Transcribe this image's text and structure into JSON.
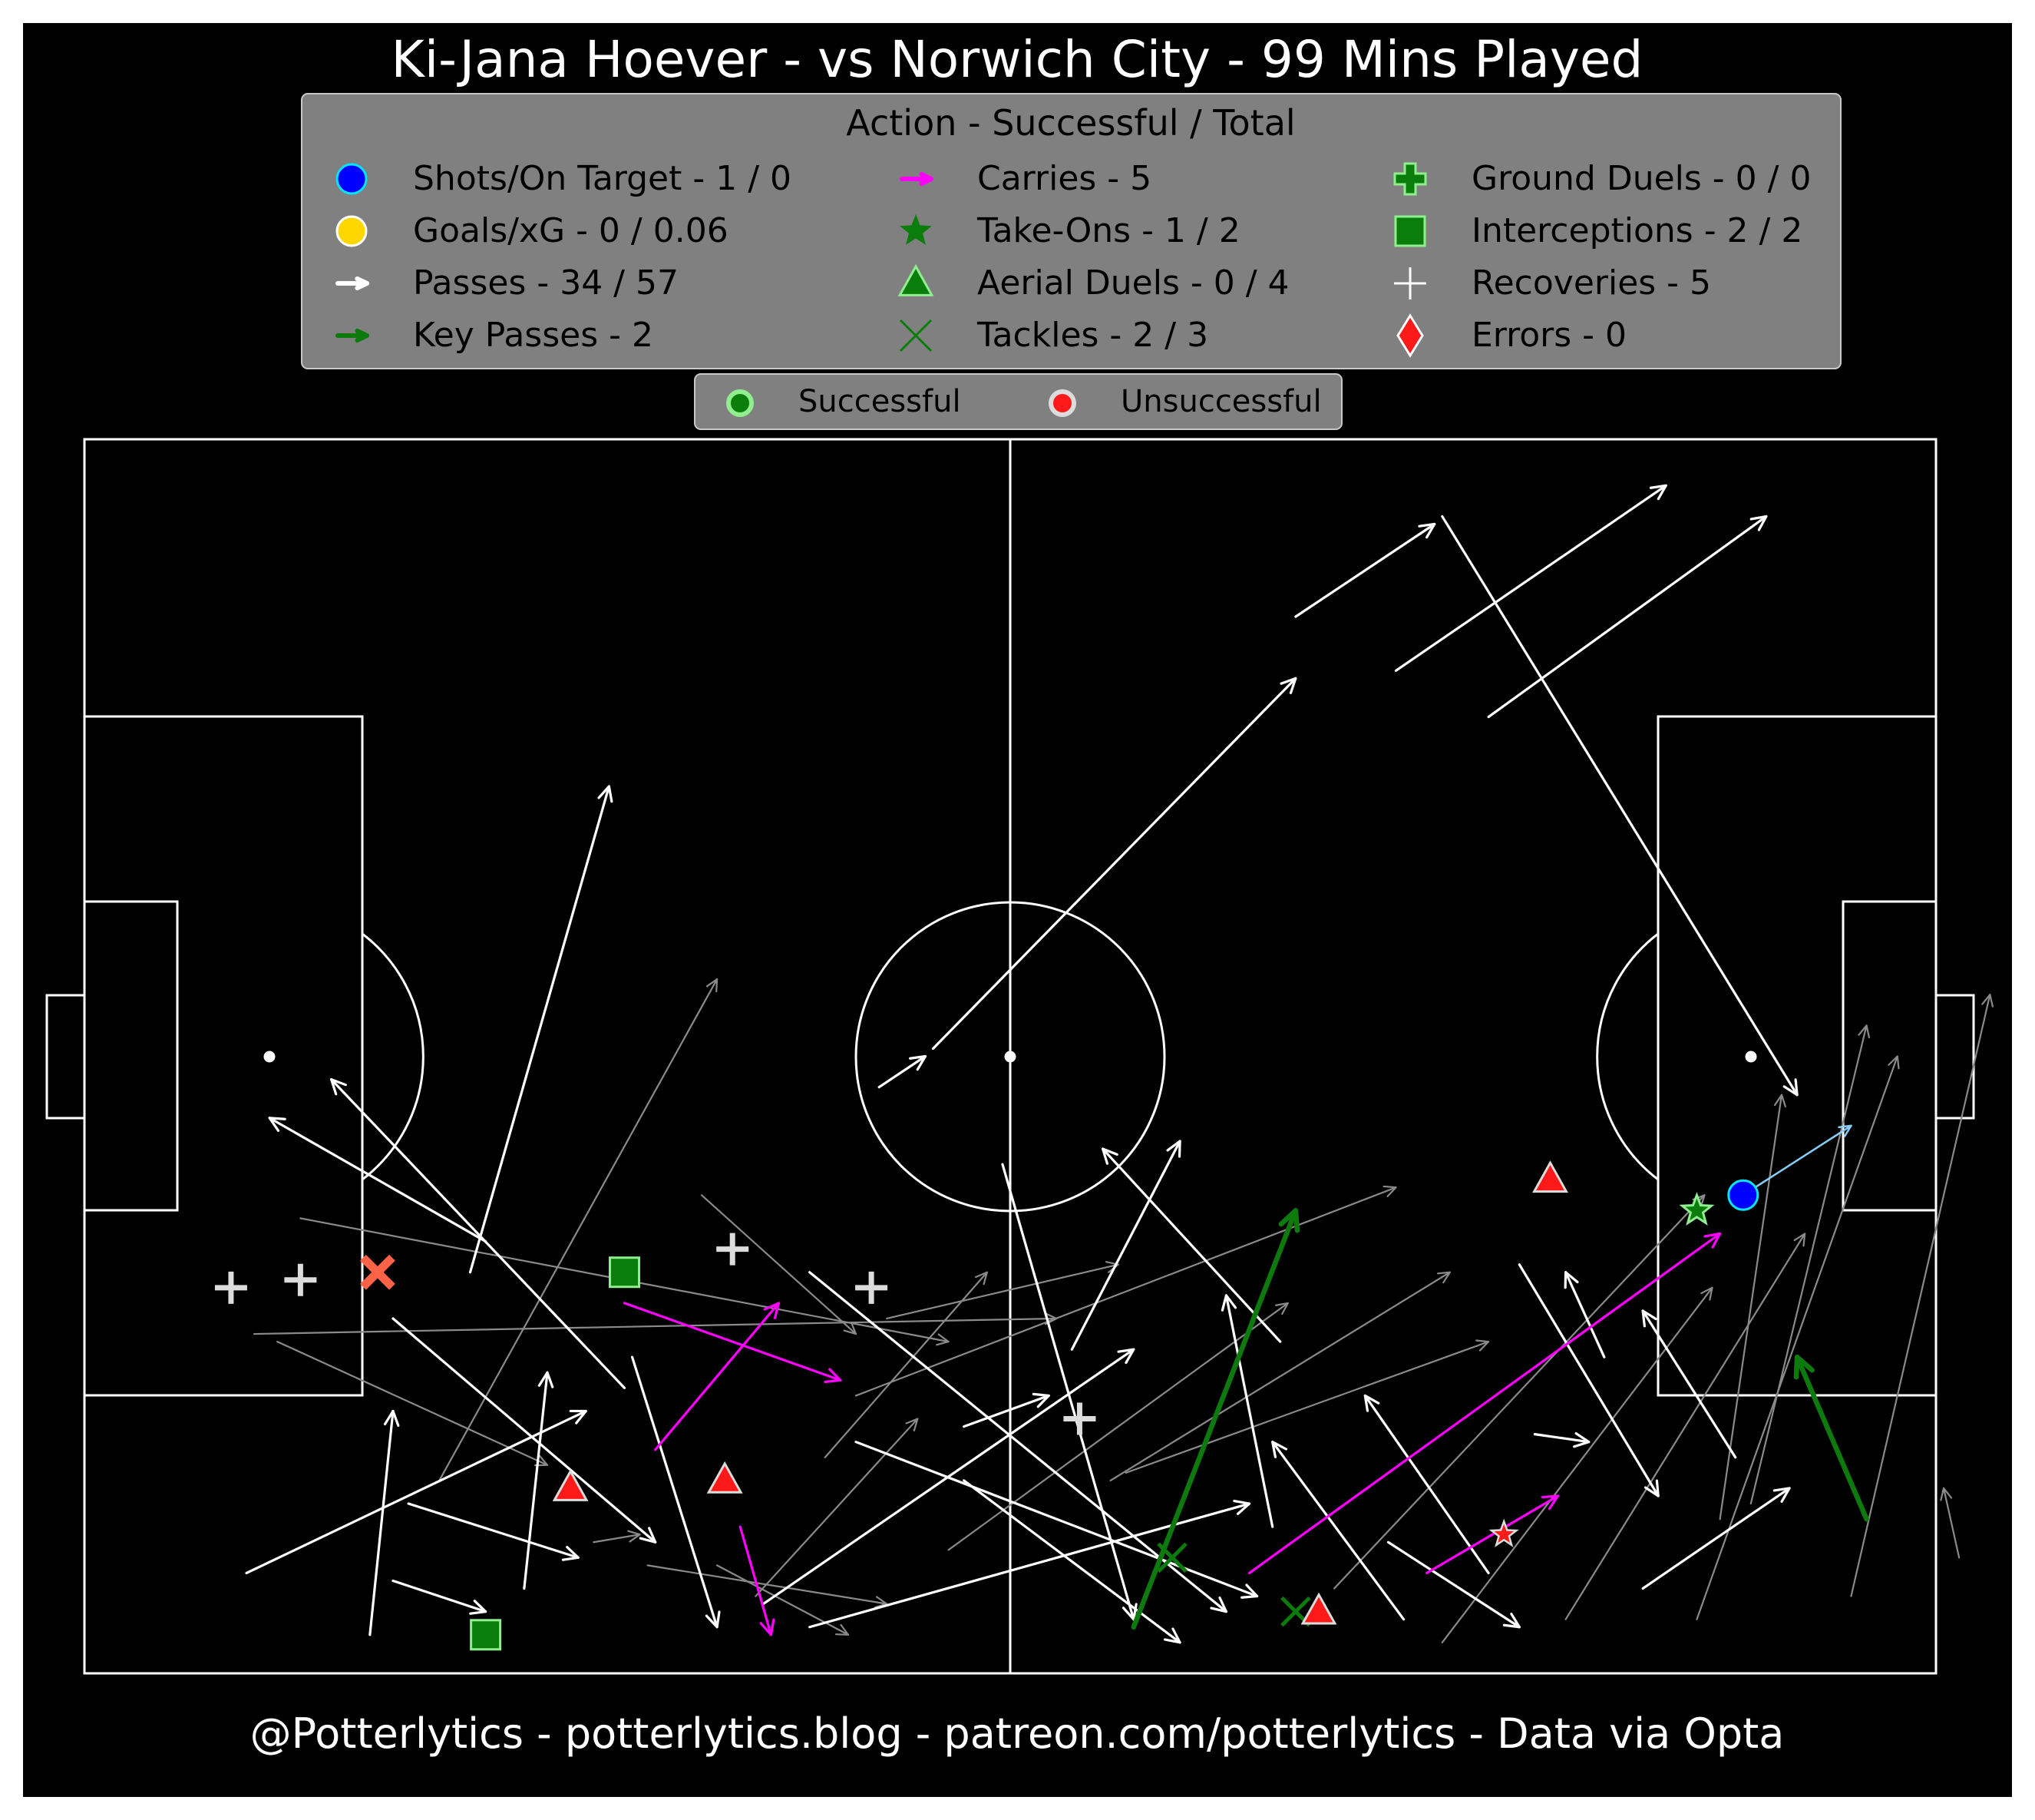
{
  "colors": {
    "background": "#000000",
    "pitch_lines": "#ffffff",
    "pass_success": "#ffffff",
    "pass_fail": "#8a8a8a",
    "carry": "#ff00ff",
    "key_pass": "#0d7a0d",
    "success_fill": "#0b7d0b",
    "success_edge": "#90ee90",
    "fail_fill": "#ff1a1a",
    "shot": "#0000ff",
    "shot_edge": "#00e5ff",
    "shot_line": "#87cefa",
    "goal": "#ffd700",
    "recovery": "#dcdcdc",
    "error": "#ff6347",
    "legend_bg": "#808080"
  },
  "chart_data": {
    "type": "scatter",
    "title": "Ki-Jana Hoever - vs Norwich City - 99 Mins Played",
    "footer": "@Potterlytics - potterlytics.blog - patreon.com/potterlytics - Data via Opta",
    "pitch": {
      "length": 120,
      "width": 80,
      "attacking_direction": "left-to-right"
    },
    "legend": {
      "title": "Action - Successful / Total",
      "placement": "top-center",
      "items": [
        {
          "label": "Shots/On Target - 1 / 0",
          "icon": "shot-circle"
        },
        {
          "label": "Goals/xG - 0 / 0.06",
          "icon": "goal-circle"
        },
        {
          "label": "Passes - 34 / 57",
          "icon": "pass-arrow"
        },
        {
          "label": "Key Passes - 2",
          "icon": "key-pass-arrow"
        },
        {
          "label": "Carries - 5",
          "icon": "carry-arrow"
        },
        {
          "label": "Take-Ons - 1 / 2",
          "icon": "star"
        },
        {
          "label": "Aerial Duels - 0 / 4",
          "icon": "triangle"
        },
        {
          "label": "Tackles - 2 / 3",
          "icon": "x-mark"
        },
        {
          "label": "Ground Duels - 0 / 0",
          "icon": "thick-plus"
        },
        {
          "label": "Interceptions - 2 / 2",
          "icon": "square"
        },
        {
          "label": "Recoveries - 5",
          "icon": "plus"
        },
        {
          "label": "Errors - 0",
          "icon": "diamond"
        }
      ],
      "outcome_items": [
        {
          "label": "Successful",
          "icon": "success-dot"
        },
        {
          "label": "Unsuccessful",
          "icon": "fail-dot"
        }
      ]
    },
    "passes_success": [
      [
        78.5,
        68.5,
        87.5,
        74.5
      ],
      [
        85,
        65,
        102.5,
        77
      ],
      [
        91,
        62,
        109,
        75
      ],
      [
        55,
        40.5,
        78.5,
        64.5
      ],
      [
        51.5,
        38,
        54.5,
        40
      ],
      [
        21,
        11,
        32,
        7.5
      ],
      [
        10.5,
        6.5,
        32.5,
        17
      ],
      [
        25,
        26,
        34,
        57.5
      ],
      [
        18.5,
        2.5,
        20,
        17
      ],
      [
        20,
        6,
        26,
        4
      ],
      [
        28.5,
        5.5,
        30,
        19.5
      ],
      [
        35.5,
        20.5,
        41,
        3
      ],
      [
        26,
        28,
        12,
        36
      ],
      [
        35,
        18.5,
        16,
        38.5
      ],
      [
        20,
        23,
        37,
        8.5
      ],
      [
        47,
        26,
        74,
        4
      ],
      [
        59.5,
        33,
        68,
        3.5
      ],
      [
        47,
        3,
        75.5,
        11
      ],
      [
        57,
        16,
        62.5,
        18
      ],
      [
        57,
        12.5,
        71,
        2
      ],
      [
        50,
        15,
        76,
        5
      ],
      [
        44,
        4.5,
        68,
        21
      ],
      [
        64,
        21,
        71,
        34.5
      ],
      [
        77.5,
        21.5,
        66,
        34
      ],
      [
        85.5,
        3.5,
        77,
        15
      ],
      [
        77,
        9.5,
        74,
        24.5
      ],
      [
        91,
        6.5,
        83,
        18
      ],
      [
        94,
        15.5,
        97.5,
        15
      ],
      [
        93,
        26.5,
        102,
        11.5
      ],
      [
        84.5,
        8.5,
        93,
        3
      ],
      [
        98.5,
        20.5,
        96,
        26
      ],
      [
        101,
        5.5,
        110.5,
        12
      ],
      [
        107,
        14,
        101,
        23.5
      ],
      [
        88,
        75,
        111,
        37.5
      ]
    ],
    "passes_fail": [
      [
        12.5,
        21.5,
        30,
        13.5
      ],
      [
        14,
        29.5,
        56,
        21.5
      ],
      [
        11,
        22,
        63,
        23
      ],
      [
        23,
        12.5,
        41,
        45
      ],
      [
        33,
        8.5,
        36,
        9
      ],
      [
        43.5,
        5,
        54,
        16.5
      ],
      [
        48,
        14,
        58.5,
        26
      ],
      [
        40,
        31,
        50,
        22
      ],
      [
        50,
        18,
        85,
        31.5
      ],
      [
        52,
        23,
        67,
        26.5
      ],
      [
        56,
        8,
        78,
        24
      ],
      [
        41,
        7,
        49.5,
        2.5
      ],
      [
        36.5,
        7,
        52,
        4.5
      ],
      [
        66.5,
        12.5,
        88.5,
        26
      ],
      [
        67.5,
        13,
        91,
        21.5
      ],
      [
        81,
        5.5,
        105,
        31
      ],
      [
        88,
        2,
        105.5,
        25
      ],
      [
        96,
        3.5,
        111.5,
        28.5
      ],
      [
        106,
        10,
        110,
        37.5
      ],
      [
        108,
        11,
        115.5,
        42
      ],
      [
        114.5,
        5,
        123.5,
        44
      ],
      [
        104.5,
        3.5,
        117.5,
        40
      ],
      [
        121.5,
        7.5,
        120.5,
        12
      ]
    ],
    "carries": [
      [
        75.5,
        6.5,
        106,
        28.5
      ],
      [
        37,
        14.5,
        45,
        24
      ],
      [
        35,
        24,
        49,
        19
      ],
      [
        42.5,
        9.5,
        44.5,
        2.5
      ],
      [
        87,
        6.5,
        95.5,
        11.5
      ]
    ],
    "key_passes": [
      [
        115.5,
        10,
        111,
        20.5
      ],
      [
        68,
        3,
        78.5,
        30
      ]
    ],
    "shots": [
      {
        "x": 107.5,
        "y": 31,
        "end_x": 114.5,
        "end_y": 35.5
      }
    ],
    "take_ons_success": [
      [
        104.5,
        30
      ]
    ],
    "take_ons_fail": [
      [
        92,
        9
      ]
    ],
    "aerial_duels_fail": [
      [
        31.5,
        12
      ],
      [
        41.5,
        12.5
      ],
      [
        80,
        4
      ],
      [
        95,
        32
      ]
    ],
    "tackles_success": [
      [
        70.5,
        7.5
      ],
      [
        78.5,
        4
      ]
    ],
    "tackles_fail": [
      [
        19,
        26
      ]
    ],
    "interceptions_success": [
      [
        35,
        26
      ],
      [
        26,
        2.5
      ]
    ],
    "recoveries": [
      [
        9.5,
        25
      ],
      [
        14,
        25.5
      ],
      [
        42,
        27.5
      ],
      [
        51,
        25
      ],
      [
        64.5,
        16.5
      ]
    ]
  }
}
